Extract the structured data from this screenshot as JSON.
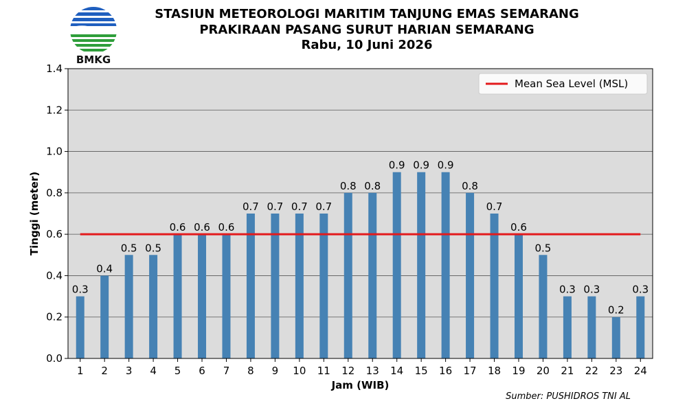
{
  "header": {
    "logo_text": "BMKG",
    "title_line1": "STASIUN METEOROLOGI MARITIM TANJUNG EMAS SEMARANG",
    "title_line2": "PRAKIRAAN PASANG SURUT HARIAN SEMARANG",
    "title_line3": "Rabu, 10 Juni 2026"
  },
  "source": "Sumber: PUSHIDROS TNI AL",
  "colors": {
    "bar": "#4682b4",
    "msl_line": "#e31a1c",
    "plot_background": "#dcdcdc",
    "logo_blue": "#1f5fbf",
    "logo_green": "#2e9e3a"
  },
  "chart_data": {
    "type": "bar",
    "categories": [
      "1",
      "2",
      "3",
      "4",
      "5",
      "6",
      "7",
      "8",
      "9",
      "10",
      "11",
      "12",
      "13",
      "14",
      "15",
      "16",
      "17",
      "18",
      "19",
      "20",
      "21",
      "22",
      "23",
      "24"
    ],
    "values": [
      0.3,
      0.4,
      0.5,
      0.5,
      0.6,
      0.6,
      0.6,
      0.7,
      0.7,
      0.7,
      0.7,
      0.8,
      0.8,
      0.9,
      0.9,
      0.9,
      0.8,
      0.7,
      0.6,
      0.5,
      0.3,
      0.3,
      0.2,
      0.3
    ],
    "data_labels": [
      "0.3",
      "0.4",
      "0.5",
      "0.5",
      "0.6",
      "0.6",
      "0.6",
      "0.7",
      "0.7",
      "0.7",
      "0.7",
      "0.8",
      "0.8",
      "0.9",
      "0.9",
      "0.9",
      "0.8",
      "0.7",
      "0.6",
      "0.5",
      "0.3",
      "0.3",
      "0.2",
      "0.3"
    ],
    "xlabel": "Jam (WIB)",
    "ylabel": "Tinggi (meter)",
    "ylim": [
      0,
      1.4
    ],
    "yticks": [
      0.0,
      0.2,
      0.4,
      0.6,
      0.8,
      1.0,
      1.2,
      1.4
    ],
    "ytick_labels": [
      "0.0",
      "0.2",
      "0.4",
      "0.6",
      "0.8",
      "1.0",
      "1.2",
      "1.4"
    ],
    "reference_line": {
      "name": "Mean Sea Level (MSL)",
      "value": 0.6,
      "from_category": "1",
      "to_category": "24"
    },
    "grid": {
      "y": true,
      "x": false
    },
    "legend": {
      "entries": [
        "Mean Sea Level (MSL)"
      ],
      "placement": "top-right"
    }
  }
}
